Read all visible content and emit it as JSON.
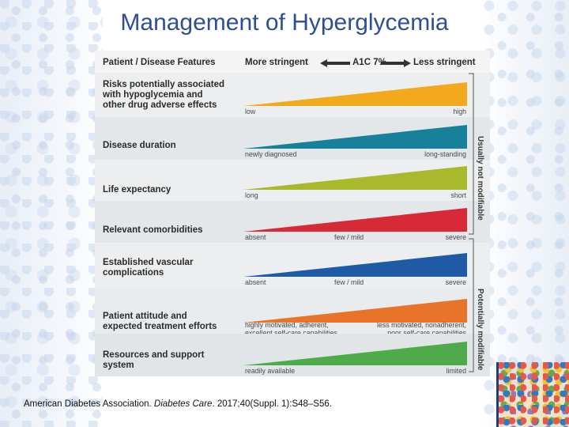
{
  "title": "Management of Hyperglycemia",
  "header": {
    "col1": "Patient / Disease Features",
    "left": "More stringent",
    "center": "A1C 7%",
    "right": "Less stringent"
  },
  "rows": [
    {
      "label": "Risks potentially associated\nwith hypoglycemia and\nother drug adverse effects",
      "color": "#f2a91c",
      "low": "low",
      "mid": "",
      "high": "high"
    },
    {
      "label": "Disease duration",
      "color": "#17809a",
      "low": "newly diagnosed",
      "mid": "",
      "high": "long-standing"
    },
    {
      "label": "Life expectancy",
      "color": "#a8b92b",
      "low": "long",
      "mid": "",
      "high": "short"
    },
    {
      "label": "Relevant comorbidities",
      "color": "#d82a36",
      "low": "absent",
      "mid": "few / mild",
      "high": "severe"
    },
    {
      "label": "Established vascular\ncomplications",
      "color": "#1f5aa6",
      "low": "absent",
      "mid": "few / mild",
      "high": "severe"
    },
    {
      "label": "Patient attitude and\nexpected treatment efforts",
      "color": "#e8742a",
      "low": "highly motivated, adherent,\nexcellent self-care capabilities",
      "mid": "",
      "high": "less motivated, nonadherent,\npoor self-care capabilities"
    },
    {
      "label": "Resources and support\nsystem",
      "color": "#4eaa4a",
      "low": "readily available",
      "mid": "",
      "high": "limited"
    }
  ],
  "side_labels": {
    "top": "Usually not modifiable",
    "bottom": "Potentially modifiable"
  },
  "citation": {
    "prefix": "American Diabetes Association. ",
    "journal": "Diabetes Care",
    "suffix": ". 2017;40(Suppl. 1):S48–S56."
  }
}
